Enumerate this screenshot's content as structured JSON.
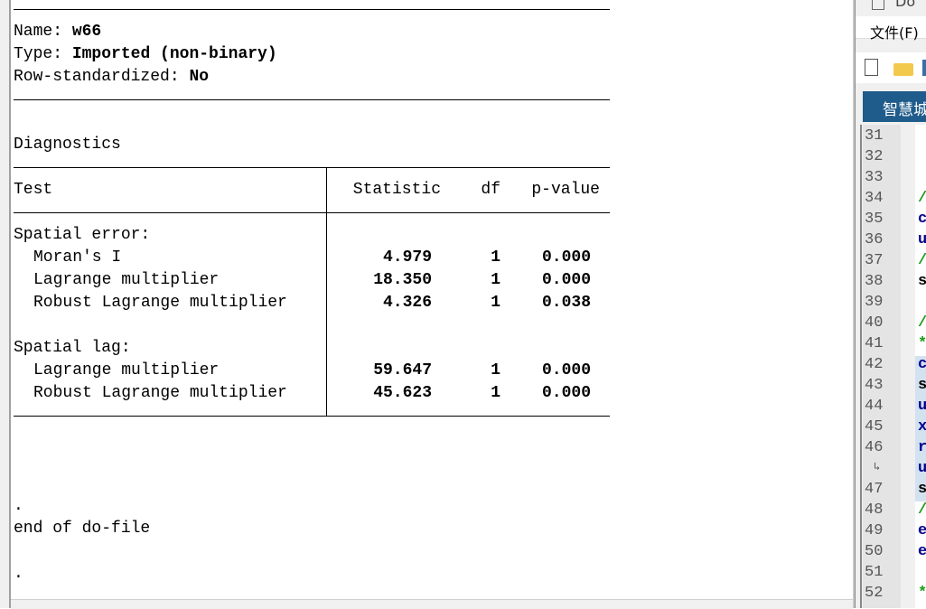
{
  "weights": {
    "name_label": "Name:",
    "name": "w66",
    "type_label": "Type:",
    "type": "Imported (non-binary)",
    "rowstd_label": "Row-standardized:",
    "rowstd": "No"
  },
  "diagnostics": {
    "title": "Diagnostics",
    "headers": {
      "test": "Test",
      "statistic": "Statistic",
      "df": "df",
      "pvalue": "p-value"
    },
    "groups": [
      {
        "label": "Spatial error:",
        "rows": [
          {
            "test": "Moran's I",
            "statistic": "4.979",
            "df": "1",
            "pvalue": "0.000"
          },
          {
            "test": "Lagrange multiplier",
            "statistic": "18.350",
            "df": "1",
            "pvalue": "0.000"
          },
          {
            "test": "Robust Lagrange multiplier",
            "statistic": "4.326",
            "df": "1",
            "pvalue": "0.038"
          }
        ]
      },
      {
        "label": "Spatial lag:",
        "rows": [
          {
            "test": "Lagrange multiplier",
            "statistic": "59.647",
            "df": "1",
            "pvalue": "0.000"
          },
          {
            "test": "Robust Lagrange multiplier",
            "statistic": "45.623",
            "df": "1",
            "pvalue": "0.000"
          }
        ]
      }
    ]
  },
  "footer": {
    "dot1": ".",
    "end": "end of do-file",
    "dot2": "."
  },
  "editor": {
    "title": "Do",
    "menu_file": "文件(F)",
    "tab": "智慧城",
    "tab_color": "#1f5c8b",
    "lines": [
      {
        "n": "31",
        "c": "",
        "col": ""
      },
      {
        "n": "32",
        "c": "",
        "col": ""
      },
      {
        "n": "33",
        "c": "",
        "col": ""
      },
      {
        "n": "34",
        "c": "/",
        "col": "#1a9a1a"
      },
      {
        "n": "35",
        "c": "c",
        "col": "#00008b"
      },
      {
        "n": "36",
        "c": "u",
        "col": "#00008b"
      },
      {
        "n": "37",
        "c": "/",
        "col": "#1a9a1a"
      },
      {
        "n": "38",
        "c": "s",
        "col": "#000"
      },
      {
        "n": "39",
        "c": "",
        "col": ""
      },
      {
        "n": "40",
        "c": "/",
        "col": "#1a9a1a"
      },
      {
        "n": "41",
        "c": "*",
        "col": "#1a9a1a"
      },
      {
        "n": "42",
        "c": "c",
        "col": "#00008b"
      },
      {
        "n": "43",
        "c": "s",
        "col": "#000"
      },
      {
        "n": "44",
        "c": "u",
        "col": "#00008b"
      },
      {
        "n": "45",
        "c": "x",
        "col": "#00008b"
      },
      {
        "n": "46",
        "c": "r",
        "col": "#00008b"
      },
      {
        "n": "",
        "c": "u",
        "col": "#00008b"
      },
      {
        "n": "47",
        "c": "s",
        "col": "#000"
      },
      {
        "n": "48",
        "c": "/",
        "col": "#1a9a1a"
      },
      {
        "n": "49",
        "c": "e",
        "col": "#00008b"
      },
      {
        "n": "50",
        "c": "e",
        "col": "#00008b"
      },
      {
        "n": "51",
        "c": "",
        "col": ""
      },
      {
        "n": "52",
        "c": "*",
        "col": "#1a9a1a"
      }
    ]
  }
}
